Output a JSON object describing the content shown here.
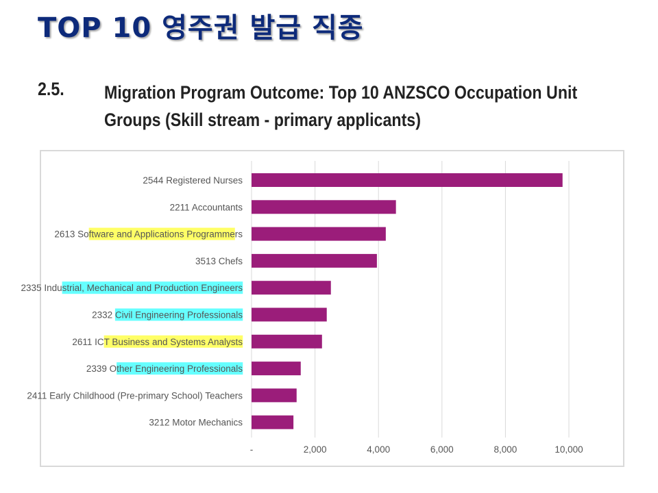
{
  "slide": {
    "title": "TOP 10 영주권 발급 직종"
  },
  "section": {
    "number": "2.5.",
    "title_line1": "Migration Program Outcome: Top 10 ANZSCO Occupation Unit",
    "title_line2": "Groups (Skill stream - primary applicants)"
  },
  "colors": {
    "bar": "#9b1d7a",
    "grid": "#d9d9d9",
    "highlight_yellow": "#ffff66",
    "highlight_cyan": "#66ffff",
    "title": "#0d2a7a"
  },
  "chart_data": {
    "type": "bar",
    "orientation": "horizontal",
    "title": "",
    "xlabel": "",
    "ylabel": "",
    "xlim": [
      0,
      10000
    ],
    "x_ticks": [
      0,
      2000,
      4000,
      6000,
      8000,
      10000
    ],
    "x_tick_labels": [
      "-",
      "2,000",
      "4,000",
      "6,000",
      "8,000",
      "10,000"
    ],
    "grid": "vertical",
    "categories": [
      {
        "prefix": "2544 Registered Nurses",
        "highlight": "",
        "suffix": "",
        "highlight_color": ""
      },
      {
        "prefix": "2211 Accountants",
        "highlight": "",
        "suffix": "",
        "highlight_color": ""
      },
      {
        "prefix": "2613 So",
        "highlight": "ftware and Applications Programme",
        "suffix": "rs",
        "highlight_color": "yellow"
      },
      {
        "prefix": "3513 Chefs",
        "highlight": "",
        "suffix": "",
        "highlight_color": ""
      },
      {
        "prefix": "2335 Indu",
        "highlight": "strial, Mechanical and Production Engineers",
        "suffix": "",
        "highlight_color": "cyan"
      },
      {
        "prefix": "2332 ",
        "highlight": "Civil Engineering Professionals",
        "suffix": "",
        "highlight_color": "cyan"
      },
      {
        "prefix": "2611 IC",
        "highlight": "T Business and Systems Analysts",
        "suffix": "",
        "highlight_color": "yellow"
      },
      {
        "prefix": "2339 O",
        "highlight": "ther Engineering Professionals",
        "suffix": "",
        "highlight_color": "cyan"
      },
      {
        "prefix": "2411 Early Childhood (Pre-primary School) Teachers",
        "highlight": "",
        "suffix": "",
        "highlight_color": ""
      },
      {
        "prefix": "3212 Motor Mechanics",
        "highlight": "",
        "suffix": "",
        "highlight_color": ""
      }
    ],
    "values": [
      9800,
      4550,
      4230,
      3950,
      2500,
      2370,
      2220,
      1550,
      1420,
      1320
    ]
  }
}
